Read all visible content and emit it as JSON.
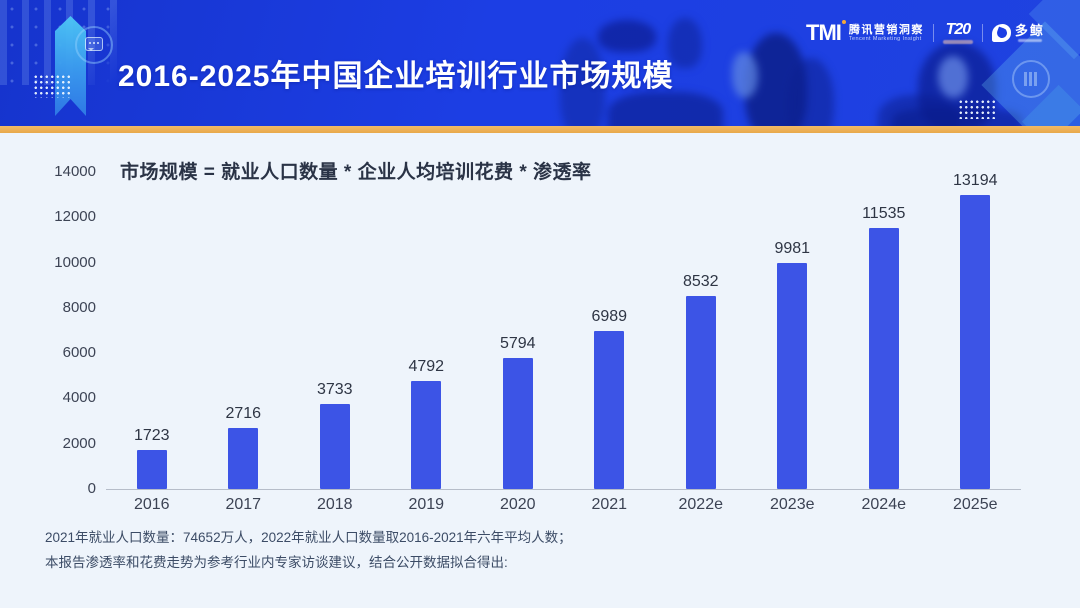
{
  "header": {
    "title": "2016-2025年中国企业培训行业市场规模",
    "logos": {
      "tmi": "TMI",
      "tmi_cn": "腾讯营销洞察",
      "tmi_en": "Tencent Marketing Insight",
      "t20": "T20",
      "whale_cn": "多鲸"
    },
    "colors": {
      "header_blue": "#1c3ee4",
      "accent_orange": "#eaae4e"
    }
  },
  "chart_data": {
    "type": "bar",
    "title": "市场规模 = 就业人口数量 * 企业人均培训花费 * 渗透率",
    "categories": [
      "2016",
      "2017",
      "2018",
      "2019",
      "2020",
      "2021",
      "2022e",
      "2023e",
      "2024e",
      "2025e"
    ],
    "values": [
      1723,
      2716,
      3733,
      4792,
      5794,
      6989,
      8532,
      9981,
      11535,
      13194
    ],
    "xlabel": "",
    "ylabel": "",
    "ylim": [
      0,
      14000
    ],
    "ytick_step": 2000,
    "grid": false,
    "legend": "none",
    "value_labels": true,
    "bar_color": "#3c54e6",
    "axis_color": "#b6bdc9",
    "background": "#eef4fb"
  },
  "footnote": {
    "line1": "2021年就业人口数量：74652万人，2022年就业人口数量取2016-2021年六年平均人数；",
    "line2": "本报告渗透率和花费走势为参考行业内专家访谈建议，结合公开数据拟合得出:"
  }
}
